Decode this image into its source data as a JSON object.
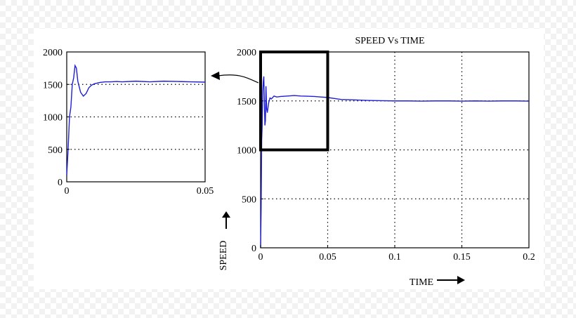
{
  "chart_data": [
    {
      "id": "main",
      "type": "line",
      "title": "SPEED Vs TIME",
      "xlabel": "TIME",
      "ylabel": "SPEED",
      "xlim": [
        0,
        0.2
      ],
      "ylim": [
        0,
        2000
      ],
      "x_ticks": [
        0,
        0.05,
        0.1,
        0.15,
        0.2
      ],
      "x_tick_labels": [
        "0",
        "0.05",
        "0.1",
        "0.15",
        "0.2"
      ],
      "y_ticks": [
        0,
        500,
        1000,
        1500,
        2000
      ],
      "y_tick_labels": [
        "0",
        "500",
        "1000",
        "1500",
        "2000"
      ],
      "grid": true,
      "line_color": "#1f1fd6",
      "zoom_box": {
        "x": [
          0,
          0.05
        ],
        "y": [
          1000,
          2000
        ]
      },
      "series": [
        {
          "x": [
            0,
            0.0004,
            0.0008,
            0.0012,
            0.0016,
            0.002,
            0.0024,
            0.0028,
            0.0032,
            0.0036,
            0.004,
            0.0045,
            0.005,
            0.006,
            0.007,
            0.008,
            0.01,
            0.012,
            0.015,
            0.02,
            0.025,
            0.03,
            0.035,
            0.04,
            0.045,
            0.05,
            0.055,
            0.06,
            0.07,
            0.08,
            0.09,
            0.1,
            0.11,
            0.12,
            0.13,
            0.14,
            0.15,
            0.16,
            0.17,
            0.18,
            0.19,
            0.2
          ],
          "y": [
            0,
            400,
            1100,
            1250,
            1600,
            1700,
            1750,
            1480,
            1250,
            1300,
            1650,
            1420,
            1380,
            1480,
            1530,
            1520,
            1550,
            1540,
            1545,
            1550,
            1555,
            1550,
            1548,
            1545,
            1540,
            1535,
            1525,
            1515,
            1510,
            1505,
            1502,
            1500,
            1500,
            1498,
            1500,
            1500,
            1498,
            1500,
            1498,
            1500,
            1500,
            1498
          ]
        }
      ]
    },
    {
      "id": "inset",
      "type": "line",
      "xlim": [
        0,
        0.05
      ],
      "ylim": [
        0,
        2000
      ],
      "x_ticks": [
        0,
        0.05
      ],
      "x_tick_labels": [
        "0",
        "0.05"
      ],
      "y_ticks": [
        0,
        500,
        1000,
        1500,
        2000
      ],
      "y_tick_labels": [
        "0",
        "500",
        "1000",
        "1500",
        "2000"
      ],
      "grid": true,
      "line_color": "#1f1fd6",
      "series": [
        {
          "x": [
            0,
            0.0005,
            0.001,
            0.0015,
            0.002,
            0.0025,
            0.003,
            0.0035,
            0.004,
            0.005,
            0.006,
            0.007,
            0.008,
            0.009,
            0.01,
            0.012,
            0.014,
            0.016,
            0.018,
            0.02,
            0.025,
            0.03,
            0.035,
            0.04,
            0.045,
            0.05
          ],
          "y": [
            100,
            500,
            1000,
            1150,
            1500,
            1600,
            1790,
            1750,
            1550,
            1380,
            1320,
            1360,
            1450,
            1490,
            1510,
            1530,
            1540,
            1540,
            1545,
            1540,
            1550,
            1540,
            1550,
            1545,
            1540,
            1535
          ]
        }
      ]
    }
  ]
}
